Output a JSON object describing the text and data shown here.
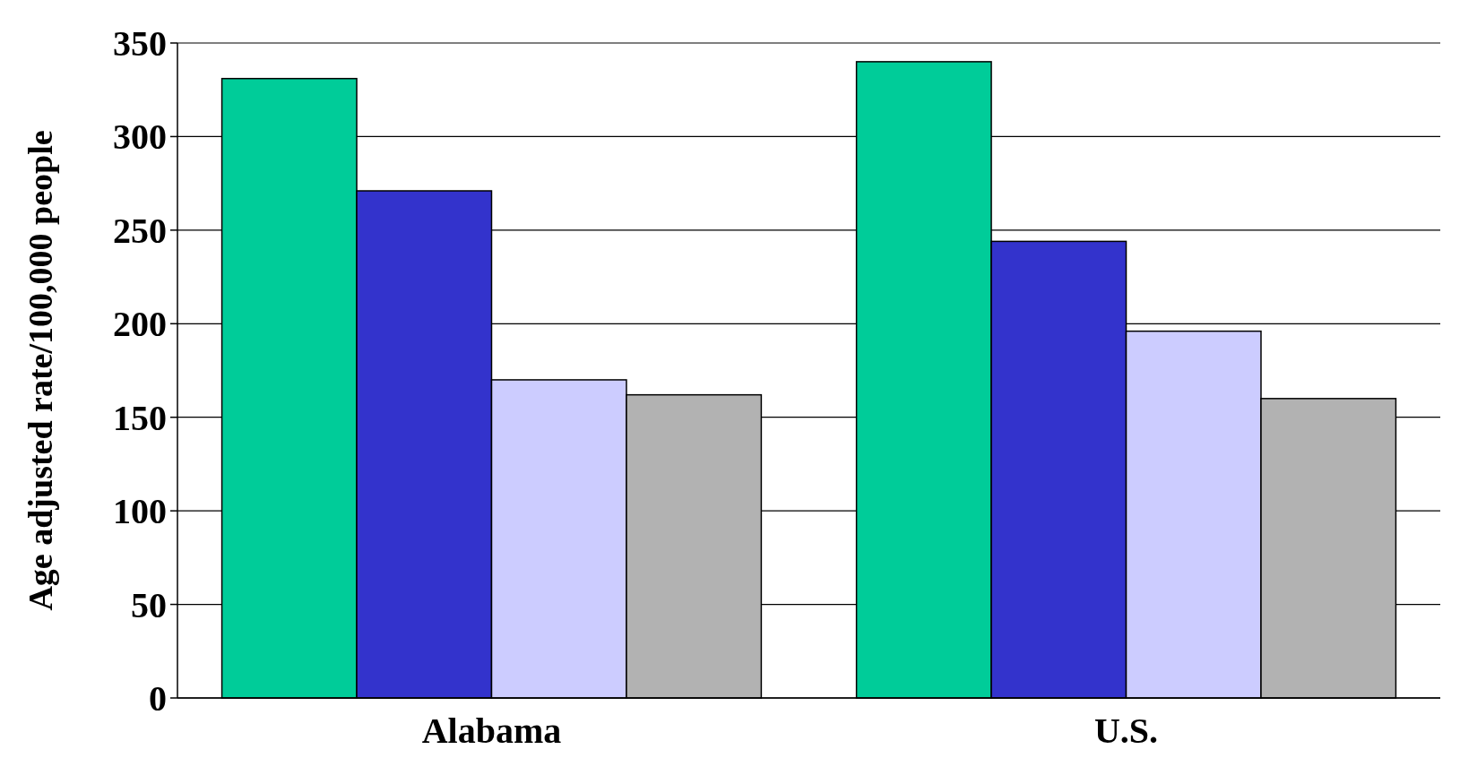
{
  "chart_data": {
    "type": "bar",
    "ylabel": "Age adjusted rate/100,000 people",
    "categories": [
      "Alabama",
      "U.S."
    ],
    "series": [
      {
        "color": "#00cc99",
        "values": [
          331,
          340
        ]
      },
      {
        "color": "#3333cc",
        "values": [
          271,
          244
        ]
      },
      {
        "color": "#ccccff",
        "values": [
          170,
          196
        ]
      },
      {
        "color": "#b2b2b2",
        "values": [
          162,
          160
        ]
      }
    ],
    "ylim": [
      0,
      350
    ],
    "yticks": [
      0,
      50,
      100,
      150,
      200,
      250,
      300,
      350
    ],
    "grid": "y"
  }
}
